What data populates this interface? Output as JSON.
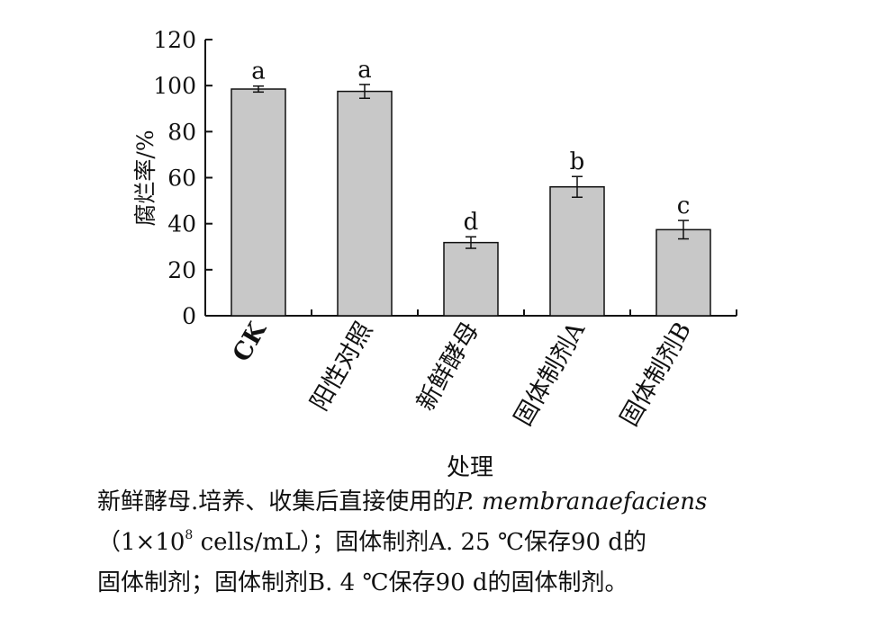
{
  "chart_data": {
    "type": "bar",
    "ylabel": "腐烂率/%",
    "xlabel": "处理",
    "ylim": [
      0,
      120
    ],
    "yticks": [
      0,
      20,
      40,
      60,
      80,
      100,
      120
    ],
    "categories": [
      "CK",
      "阳性对照",
      "新鲜酵母",
      "固体制剂A",
      "固体制剂B"
    ],
    "values": [
      98.5,
      97.5,
      31.8,
      56.0,
      37.4
    ],
    "errors": [
      1.3,
      3.0,
      2.5,
      4.5,
      4.0
    ],
    "significance_letters": [
      "a",
      "a",
      "d",
      "b",
      "c"
    ],
    "bar_color": "#c8c8c8",
    "bar_stroke": "#111111",
    "grid": false
  },
  "caption": {
    "line1_prefix": "新鲜酵母.培养、收集后直接使用的",
    "line1_italic": "P. membranaefaciens",
    "line2_open": "（1×10",
    "line2_sup": "8",
    "line2_rest": " cells/mL）；固体制剂A. 25 ℃保存90 d的",
    "line3": "固体制剂；固体制剂B. 4 ℃保存90 d的固体制剂。"
  }
}
